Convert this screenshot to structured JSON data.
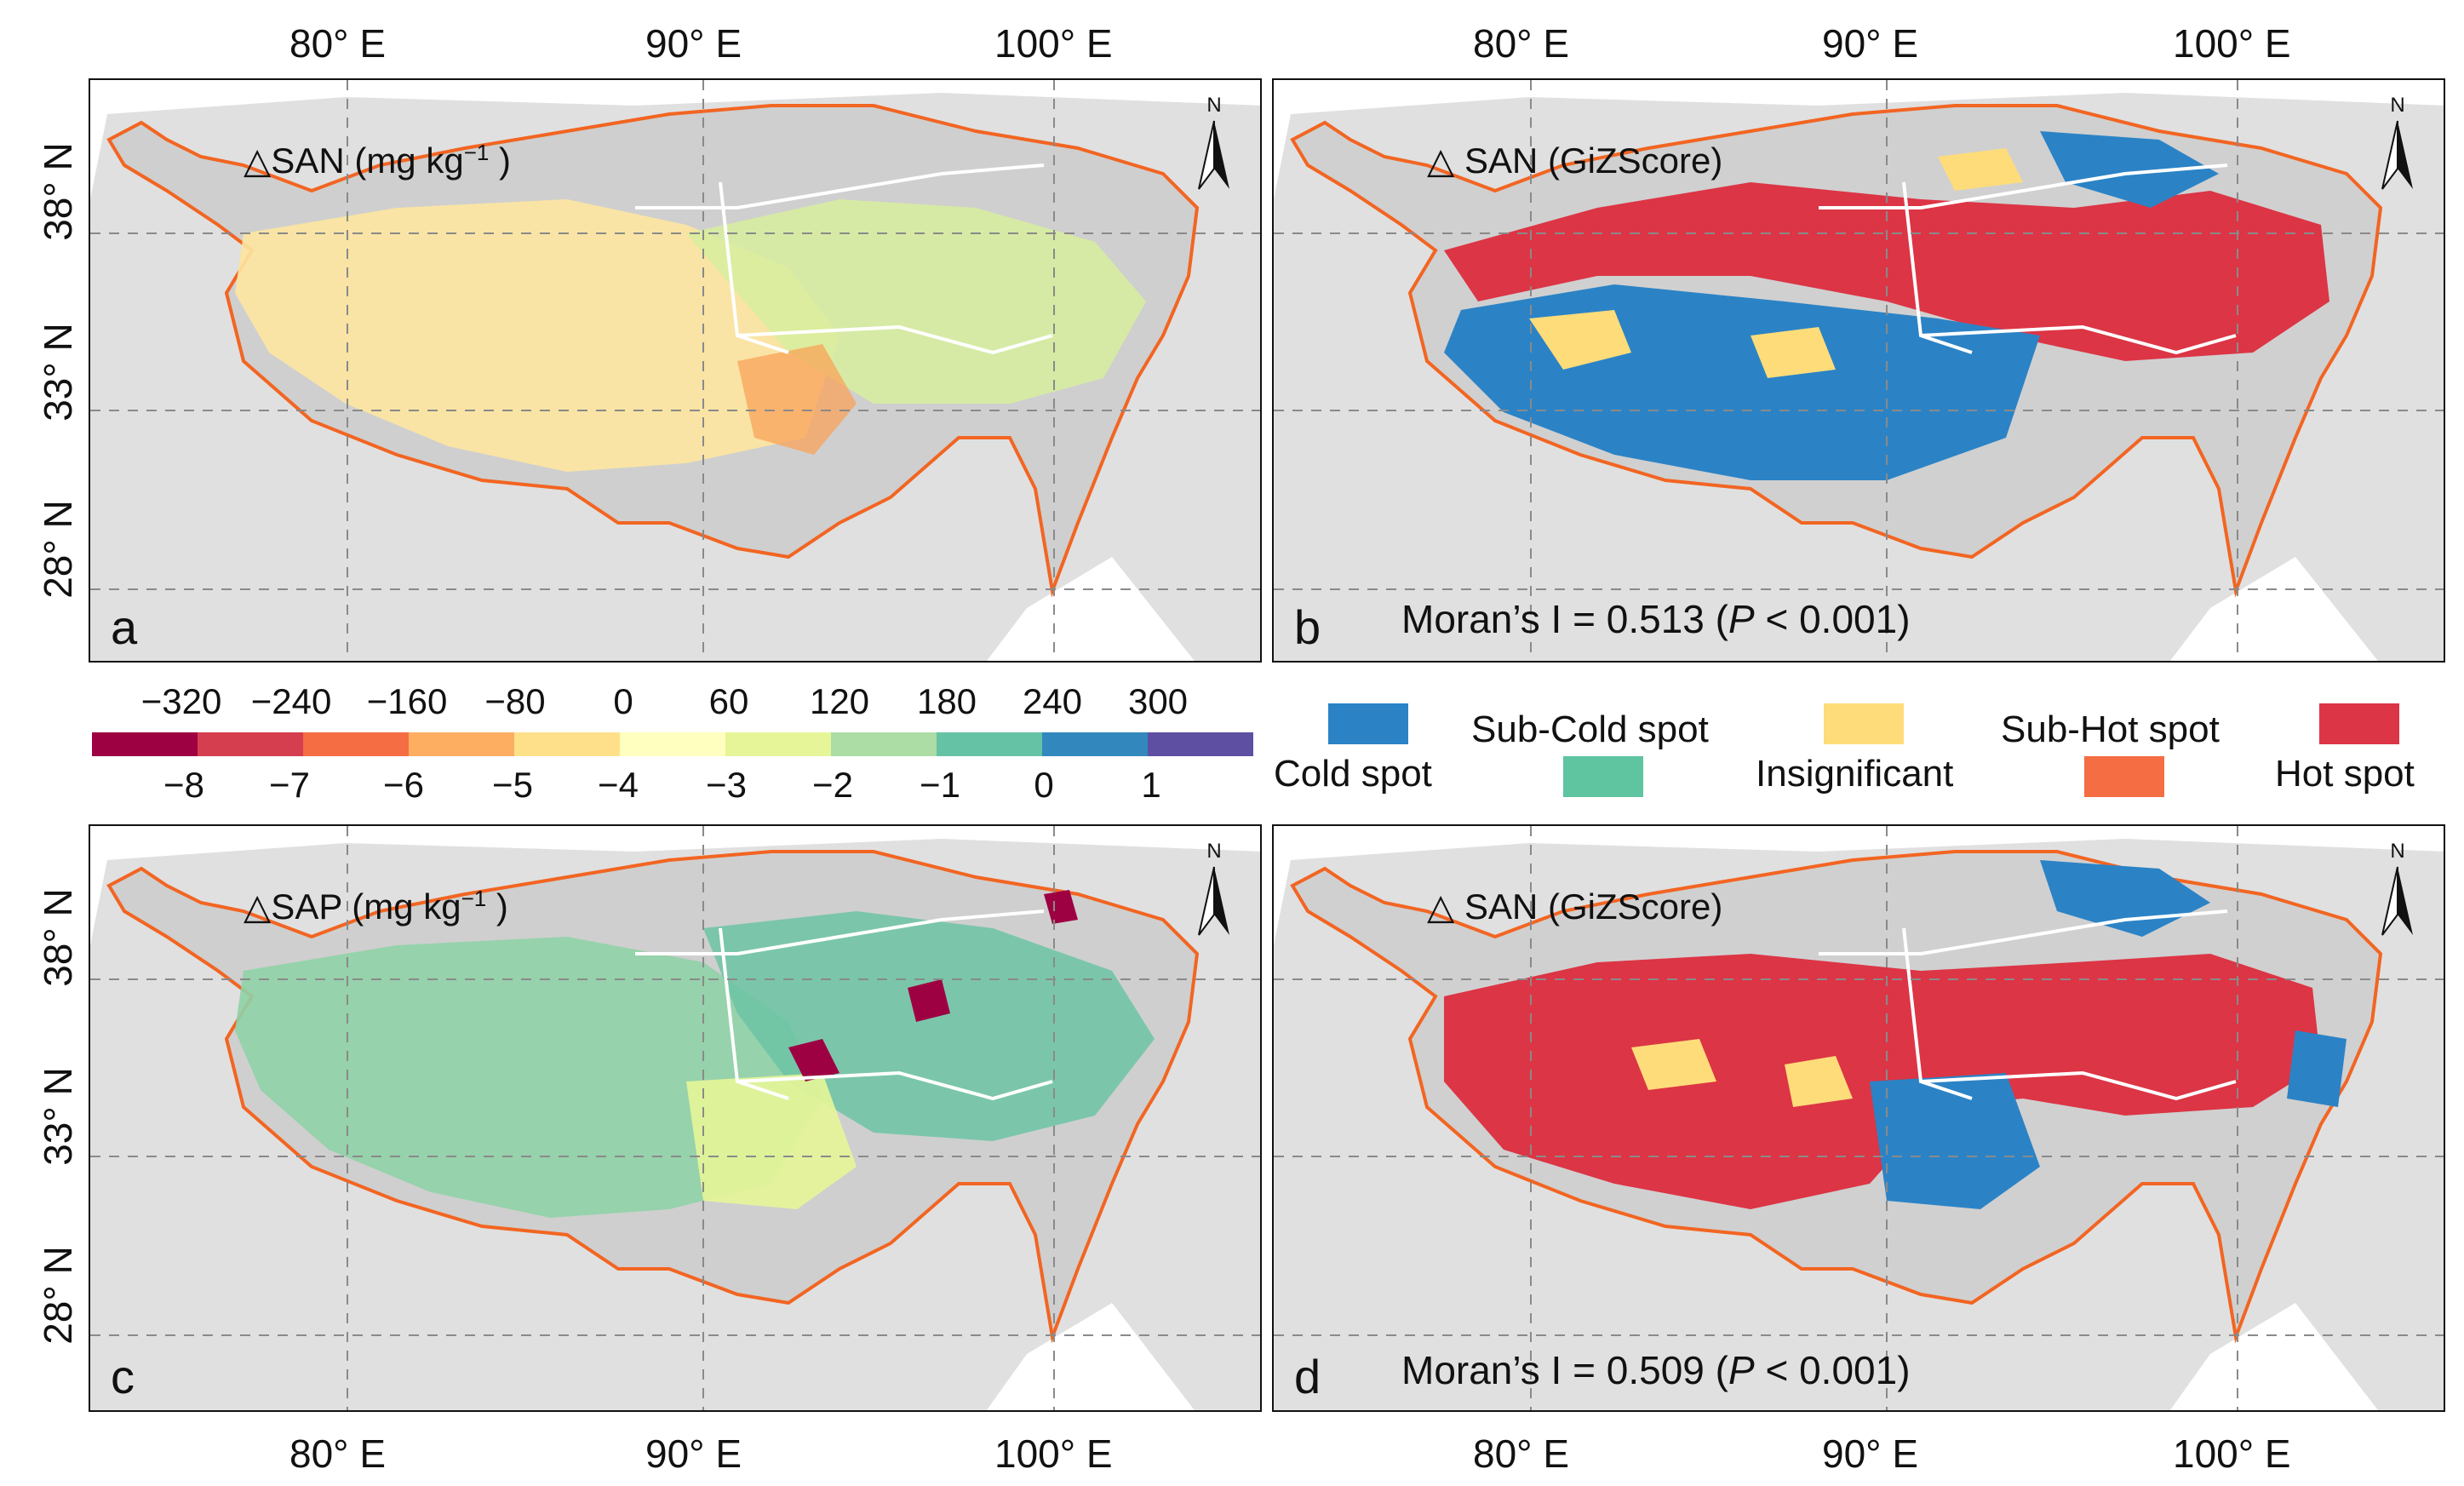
{
  "figure": {
    "longitude_ticks": [
      "80° E",
      "90° E",
      "100° E"
    ],
    "latitude_ticks": [
      "38° N",
      "33° N",
      "28° N"
    ],
    "north_label": "N"
  },
  "panels": {
    "a": {
      "letter": "a",
      "title_main": "△SAN  (mg kg",
      "title_sup": "−1",
      "title_end": " )"
    },
    "b": {
      "letter": "b",
      "title": "△ SAN (GiZScore)",
      "moran_prefix": "Moran’s I = 0.513 (",
      "moran_p": "P",
      "moran_suffix": " < 0.001)"
    },
    "c": {
      "letter": "c",
      "title_main": "△SAP  (mg kg",
      "title_sup": "−1",
      "title_end": " )"
    },
    "d": {
      "letter": "d",
      "title": "△ SAN (GiZScore)",
      "moran_prefix": "Moran’s I = 0.509 (",
      "moran_p": "P",
      "moran_suffix": " < 0.001)"
    }
  },
  "colorbar": {
    "top_labels": [
      "−320",
      "−240",
      "−160",
      "−80",
      "0",
      "60",
      "120",
      "180",
      "240",
      "300"
    ],
    "bottom_labels": [
      "−8",
      "−7",
      "−6",
      "−5",
      "−4",
      "−3",
      "−2",
      "−1",
      "0",
      "1"
    ],
    "colors": [
      "#9e0142",
      "#d53e4f",
      "#f46d43",
      "#fdae61",
      "#fee08b",
      "#ffffbf",
      "#e6f598",
      "#abdda4",
      "#66c2a5",
      "#3288bd",
      "#5e4fa2"
    ]
  },
  "hotspot_legend": {
    "items": [
      {
        "label": "Cold spot",
        "color": "#2b83c6"
      },
      {
        "label": "Sub-Cold spot",
        "color": "#fedc7a"
      },
      {
        "label": "Insignificant",
        "color": "#5fc4a0"
      },
      {
        "label": "Sub-Hot spot",
        "color": "#f46d43"
      },
      {
        "label": "Hot spot",
        "color": "#dc3545"
      }
    ]
  },
  "colors": {
    "boundary": "#f26522",
    "background_land": "#e0e0e0",
    "province_lines": "#ffffff",
    "grid": "#8a8a8a"
  }
}
